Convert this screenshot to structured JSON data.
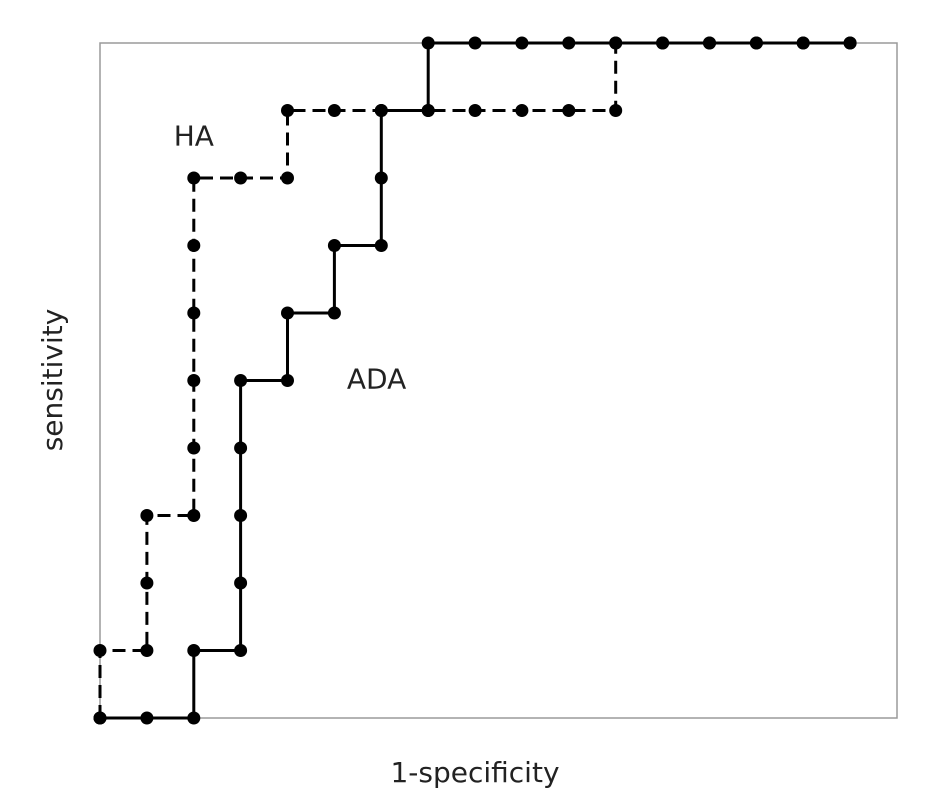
{
  "chart_data": {
    "type": "line",
    "xlabel": "1-specificity",
    "ylabel": "sensitivity",
    "xlim": [
      0,
      17
    ],
    "ylim": [
      0,
      10
    ],
    "grid": false,
    "series": [
      {
        "name": "HA",
        "line_style": "dashed",
        "color": "#000000",
        "x": [
          0,
          0,
          1,
          1,
          1,
          2,
          2,
          2,
          2,
          2,
          2,
          3,
          4,
          4,
          5,
          6,
          7,
          8,
          9,
          10,
          11,
          11,
          12,
          13,
          14,
          15,
          16
        ],
        "y": [
          0,
          1,
          1,
          2,
          3,
          3,
          4,
          5,
          6,
          7,
          8,
          8,
          8,
          9,
          9,
          9,
          9,
          9,
          9,
          9,
          9,
          10,
          10,
          10,
          10,
          10,
          10
        ]
      },
      {
        "name": "ADA",
        "line_style": "solid",
        "color": "#000000",
        "x": [
          0,
          1,
          2,
          2,
          3,
          3,
          3,
          3,
          3,
          4,
          4,
          5,
          5,
          6,
          6,
          6,
          7,
          7,
          8,
          9,
          10,
          11,
          12,
          13,
          14,
          15,
          16
        ],
        "y": [
          0,
          0,
          0,
          1,
          1,
          2,
          3,
          4,
          5,
          5,
          6,
          6,
          7,
          7,
          8,
          9,
          9,
          10,
          10,
          10,
          10,
          10,
          10,
          10,
          10,
          10,
          10
        ]
      }
    ],
    "annotations": [
      {
        "text": "HA",
        "x": 2,
        "y": 8.6
      },
      {
        "text": "ADA",
        "x": 5.9,
        "y": 5.0
      }
    ]
  }
}
